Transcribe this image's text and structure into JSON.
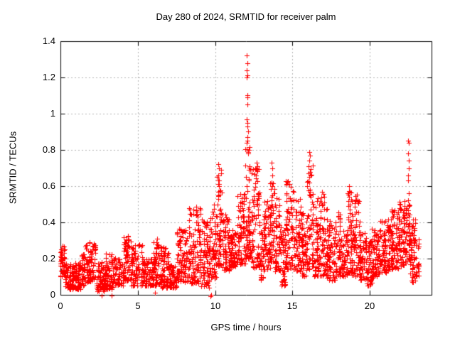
{
  "chart_data": {
    "type": "scatter",
    "title": "Day 280 of 2024, SRMTID for receiver palm",
    "xlabel": "GPS time / hours",
    "ylabel": "SRMTID / TECUs",
    "xlim": [
      0,
      24
    ],
    "ylim": [
      0,
      1.4
    ],
    "xticks": [
      0,
      5,
      10,
      15,
      20
    ],
    "yticks": [
      0,
      0.2,
      0.4,
      0.6,
      0.8,
      1.0,
      1.2,
      1.4
    ],
    "xtick_labels": [
      "0",
      "5",
      "10",
      "15",
      "20"
    ],
    "ytick_labels": [
      "0",
      "0.2",
      "0.4",
      "0.6",
      "0.8",
      "1",
      "1.2",
      "1.4"
    ],
    "grid_xticks": [
      5,
      10,
      15,
      20
    ],
    "grid_yticks": [
      0.2,
      0.4,
      0.6,
      0.8,
      1.0,
      1.2
    ],
    "grid": true,
    "legend": "none",
    "marker": "plus",
    "marker_size_px": 7,
    "colors": {
      "marker": "#ff0000",
      "grid": "#b0b0b0",
      "border": "#000000",
      "text": "#000000",
      "background": "#ffffff"
    },
    "series_name": "SRMTID",
    "envelope_format": [
      "hour_start",
      "hour_end",
      "y_min",
      "y_max",
      "n_points"
    ],
    "envelope": [
      [
        0.0,
        0.3,
        0.1,
        0.27,
        45
      ],
      [
        0.3,
        1.3,
        0.03,
        0.18,
        130
      ],
      [
        1.3,
        1.6,
        0.05,
        0.23,
        40
      ],
      [
        1.6,
        2.3,
        0.07,
        0.29,
        85
      ],
      [
        2.3,
        2.9,
        0.02,
        0.18,
        70
      ],
      [
        2.9,
        3.5,
        0.03,
        0.23,
        70
      ],
      [
        3.5,
        4.1,
        0.05,
        0.21,
        65
      ],
      [
        4.1,
        4.6,
        0.07,
        0.33,
        70
      ],
      [
        4.6,
        5.3,
        0.05,
        0.28,
        80
      ],
      [
        5.3,
        6.0,
        0.05,
        0.2,
        75
      ],
      [
        6.0,
        6.4,
        0.05,
        0.31,
        55
      ],
      [
        6.4,
        7.0,
        0.04,
        0.27,
        70
      ],
      [
        7.0,
        7.5,
        0.04,
        0.17,
        55
      ],
      [
        7.5,
        8.3,
        0.07,
        0.38,
        100
      ],
      [
        8.3,
        9.1,
        0.06,
        0.5,
        110
      ],
      [
        9.1,
        9.7,
        0.04,
        0.42,
        80
      ],
      [
        9.7,
        10.1,
        0.08,
        0.5,
        55
      ],
      [
        10.1,
        10.45,
        0.15,
        0.7,
        55
      ],
      [
        10.45,
        10.9,
        0.13,
        0.45,
        60
      ],
      [
        10.9,
        11.4,
        0.15,
        0.36,
        70
      ],
      [
        11.4,
        11.95,
        0.17,
        0.58,
        80
      ],
      [
        11.95,
        12.35,
        0.2,
        0.82,
        70
      ],
      [
        12.35,
        12.9,
        0.15,
        0.7,
        80
      ],
      [
        12.9,
        13.15,
        0.08,
        0.36,
        35
      ],
      [
        13.15,
        13.55,
        0.14,
        0.52,
        55
      ],
      [
        13.55,
        13.85,
        0.18,
        0.66,
        45
      ],
      [
        13.85,
        14.25,
        0.13,
        0.55,
        55
      ],
      [
        14.25,
        14.55,
        0.05,
        0.36,
        40
      ],
      [
        14.55,
        15.15,
        0.14,
        0.63,
        85
      ],
      [
        15.15,
        15.6,
        0.13,
        0.54,
        60
      ],
      [
        15.6,
        15.95,
        0.1,
        0.45,
        50
      ],
      [
        15.95,
        16.35,
        0.14,
        0.72,
        60
      ],
      [
        16.35,
        16.75,
        0.1,
        0.55,
        55
      ],
      [
        16.75,
        17.25,
        0.1,
        0.57,
        70
      ],
      [
        17.25,
        17.8,
        0.08,
        0.42,
        75
      ],
      [
        17.8,
        18.2,
        0.1,
        0.46,
        55
      ],
      [
        18.2,
        18.55,
        0.1,
        0.36,
        45
      ],
      [
        18.55,
        18.85,
        0.12,
        0.58,
        45
      ],
      [
        18.85,
        19.35,
        0.1,
        0.56,
        70
      ],
      [
        19.35,
        19.75,
        0.08,
        0.36,
        55
      ],
      [
        19.75,
        20.15,
        0.05,
        0.3,
        55
      ],
      [
        20.15,
        20.7,
        0.1,
        0.37,
        75
      ],
      [
        20.7,
        21.3,
        0.12,
        0.42,
        85
      ],
      [
        21.3,
        21.9,
        0.14,
        0.47,
        85
      ],
      [
        21.9,
        22.3,
        0.15,
        0.52,
        60
      ],
      [
        22.3,
        22.6,
        0.18,
        0.5,
        45
      ],
      [
        22.6,
        23.0,
        0.07,
        0.42,
        55
      ],
      [
        23.0,
        23.2,
        0.1,
        0.32,
        18
      ]
    ],
    "spike_points": [
      [
        12.05,
        1.32
      ],
      [
        12.08,
        1.28
      ],
      [
        12.06,
        1.24
      ],
      [
        12.09,
        1.21
      ],
      [
        12.05,
        1.2
      ],
      [
        12.1,
        1.1
      ],
      [
        12.07,
        1.09
      ],
      [
        12.11,
        1.05
      ],
      [
        12.06,
        0.97
      ],
      [
        12.09,
        0.95
      ],
      [
        12.08,
        0.93
      ],
      [
        12.12,
        0.9
      ],
      [
        12.07,
        0.87
      ],
      [
        12.1,
        0.85
      ],
      [
        12.05,
        0.84
      ],
      [
        10.22,
        0.72
      ],
      [
        10.25,
        0.7
      ],
      [
        10.2,
        0.66
      ],
      [
        10.24,
        0.63
      ],
      [
        10.27,
        0.6
      ],
      [
        10.22,
        0.57
      ],
      [
        12.68,
        0.73
      ],
      [
        12.72,
        0.71
      ],
      [
        12.7,
        0.69
      ],
      [
        12.66,
        0.66
      ],
      [
        13.66,
        0.73
      ],
      [
        13.7,
        0.7
      ],
      [
        13.68,
        0.66
      ],
      [
        13.64,
        0.62
      ],
      [
        16.08,
        0.79
      ],
      [
        16.12,
        0.77
      ],
      [
        16.1,
        0.74
      ],
      [
        16.06,
        0.71
      ],
      [
        16.14,
        0.68
      ],
      [
        16.1,
        0.65
      ],
      [
        16.08,
        0.62
      ],
      [
        18.68,
        0.6
      ],
      [
        18.71,
        0.57
      ],
      [
        18.66,
        0.54
      ],
      [
        18.73,
        0.5
      ],
      [
        18.7,
        0.47
      ],
      [
        22.5,
        0.85
      ],
      [
        22.52,
        0.84
      ],
      [
        22.49,
        0.78
      ],
      [
        22.51,
        0.74
      ],
      [
        22.53,
        0.7
      ],
      [
        22.5,
        0.66
      ],
      [
        22.48,
        0.63
      ],
      [
        22.52,
        0.56
      ],
      [
        22.5,
        0.52
      ],
      [
        22.54,
        0.49
      ],
      [
        22.49,
        0.45
      ],
      [
        22.58,
        0.38
      ],
      [
        22.62,
        0.3
      ],
      [
        22.66,
        0.25
      ],
      [
        22.7,
        0.2
      ],
      [
        22.74,
        0.15
      ],
      [
        22.78,
        0.1
      ],
      [
        22.8,
        0.07
      ],
      [
        2.68,
        -0.005
      ],
      [
        3.32,
        -0.005
      ],
      [
        9.68,
        -0.008
      ],
      [
        9.74,
        0.0
      ],
      [
        6.1,
        0.01
      ],
      [
        0.05,
        0.25
      ],
      [
        0.08,
        0.22
      ],
      [
        0.12,
        0.27
      ]
    ]
  }
}
